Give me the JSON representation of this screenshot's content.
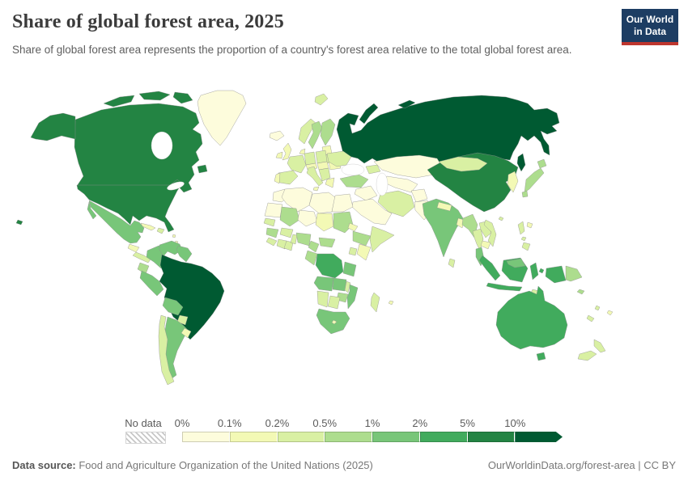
{
  "header": {
    "title": "Share of global forest area, 2025",
    "subtitle": "Share of global forest area represents the proportion of a country's forest area relative to the total global forest area.",
    "logo": {
      "line1": "Our World",
      "line2": "in Data",
      "bg_color": "#1d3d63",
      "accent_color": "#be362e"
    }
  },
  "legend": {
    "no_data_label": "No data",
    "tick_labels": [
      "0%",
      "0.1%",
      "0.2%",
      "0.5%",
      "1%",
      "2%",
      "5%",
      "10%"
    ],
    "palette": [
      "#fdfcdc",
      "#f3f9b5",
      "#d9f0a3",
      "#addd8e",
      "#78c679",
      "#41ab5d",
      "#238443",
      "#005a32"
    ]
  },
  "footer": {
    "source_label": "Data source:",
    "source_text": " Food and Agriculture Organization of the United Nations (2025)",
    "right_text": "OurWorldinData.org/forest-area | CC BY"
  },
  "chart_data": {
    "type": "heatmap",
    "subtype": "choropleth-world-map",
    "title": "Share of global forest area, 2025",
    "unit": "share of global forest area",
    "legend_position": "bottom",
    "bin_edge_labels": [
      "0%",
      "0.1%",
      "0.2%",
      "0.5%",
      "1%",
      "2%",
      "5%",
      "10%"
    ],
    "bin_ranges": [
      "0-0.1%",
      "0.1-0.2%",
      "0.2-0.5%",
      "0.5-1%",
      "1-2%",
      "2-5%",
      "5-10%",
      ">10%"
    ],
    "bin_colors": [
      "#fdfcdc",
      "#f3f9b5",
      "#d9f0a3",
      "#addd8e",
      "#78c679",
      "#41ab5d",
      "#238443",
      "#005a32"
    ],
    "no_data_style": "gray-diagonal-hatch",
    "regions": [
      {
        "id": "russia",
        "name": "Russia",
        "bin": 7
      },
      {
        "id": "brazil",
        "name": "Brazil",
        "bin": 7
      },
      {
        "id": "canada",
        "name": "Canada",
        "bin": 6
      },
      {
        "id": "united-states",
        "name": "United States",
        "bin": 6
      },
      {
        "id": "china",
        "name": "China",
        "bin": 6
      },
      {
        "id": "indonesia",
        "name": "Indonesia",
        "bin": 5
      },
      {
        "id": "australia",
        "name": "Australia",
        "bin": 5
      },
      {
        "id": "dr-congo",
        "name": "Democratic Republic of Congo",
        "bin": 5
      },
      {
        "id": "mexico",
        "name": "Mexico",
        "bin": 4
      },
      {
        "id": "colombia",
        "name": "Colombia",
        "bin": 4
      },
      {
        "id": "venezuela",
        "name": "Venezuela",
        "bin": 4
      },
      {
        "id": "guianas",
        "name": "Guyana and Suriname",
        "bin": 4
      },
      {
        "id": "peru",
        "name": "Peru",
        "bin": 4
      },
      {
        "id": "bolivia",
        "name": "Bolivia",
        "bin": 4
      },
      {
        "id": "argentina",
        "name": "Argentina",
        "bin": 4
      },
      {
        "id": "india",
        "name": "India",
        "bin": 4
      },
      {
        "id": "malaysia",
        "name": "Malaysia",
        "bin": 4
      },
      {
        "id": "angola",
        "name": "Angola",
        "bin": 4
      },
      {
        "id": "zambia",
        "name": "Zambia",
        "bin": 4
      },
      {
        "id": "tanzania",
        "name": "Tanzania",
        "bin": 4
      },
      {
        "id": "mozambique",
        "name": "Mozambique",
        "bin": 4
      },
      {
        "id": "south-africa",
        "name": "South Africa",
        "bin": 4
      },
      {
        "id": "ecuador",
        "name": "Ecuador",
        "bin": 3
      },
      {
        "id": "sweden",
        "name": "Sweden",
        "bin": 3
      },
      {
        "id": "finland",
        "name": "Finland",
        "bin": 3
      },
      {
        "id": "turkey",
        "name": "Turkey",
        "bin": 3
      },
      {
        "id": "japan",
        "name": "Japan",
        "bin": 3
      },
      {
        "id": "myanmar",
        "name": "Myanmar",
        "bin": 3
      },
      {
        "id": "mali",
        "name": "Mali",
        "bin": 3
      },
      {
        "id": "sudan",
        "name": "Sudan",
        "bin": 3
      },
      {
        "id": "ethiopia",
        "name": "Ethiopia",
        "bin": 3
      },
      {
        "id": "nigeria",
        "name": "Nigeria",
        "bin": 3
      },
      {
        "id": "cameroon",
        "name": "Cameroon",
        "bin": 3
      },
      {
        "id": "central-african-republic",
        "name": "Central African Republic",
        "bin": 3
      },
      {
        "id": "congo-gabon",
        "name": "Congo and Gabon",
        "bin": 3
      },
      {
        "id": "guinea",
        "name": "Guinea",
        "bin": 3
      },
      {
        "id": "papua-new-guinea",
        "name": "Papua New Guinea",
        "bin": 3
      },
      {
        "id": "solomon-islands",
        "name": "Solomon Islands",
        "bin": 3
      },
      {
        "id": "zimbabwe",
        "name": "Zimbabwe",
        "bin": 3
      },
      {
        "id": "chile",
        "name": "Chile",
        "bin": 2
      },
      {
        "id": "paraguay",
        "name": "Paraguay",
        "bin": 2
      },
      {
        "id": "norway",
        "name": "Norway",
        "bin": 2
      },
      {
        "id": "france",
        "name": "France",
        "bin": 2
      },
      {
        "id": "spain",
        "name": "Spain",
        "bin": 2
      },
      {
        "id": "germany",
        "name": "Germany",
        "bin": 2
      },
      {
        "id": "poland",
        "name": "Poland",
        "bin": 2
      },
      {
        "id": "italy",
        "name": "Italy",
        "bin": 2
      },
      {
        "id": "balkans",
        "name": "Balkans",
        "bin": 2
      },
      {
        "id": "ukraine",
        "name": "Ukraine",
        "bin": 2
      },
      {
        "id": "belarus",
        "name": "Belarus",
        "bin": 2
      },
      {
        "id": "mongolia",
        "name": "Mongolia",
        "bin": 2
      },
      {
        "id": "thailand",
        "name": "Thailand",
        "bin": 2
      },
      {
        "id": "laos",
        "name": "Laos",
        "bin": 2
      },
      {
        "id": "vietnam",
        "name": "Vietnam",
        "bin": 2
      },
      {
        "id": "philippines",
        "name": "Philippines",
        "bin": 2
      },
      {
        "id": "new-zealand",
        "name": "New Zealand",
        "bin": 2
      },
      {
        "id": "senegal",
        "name": "Senegal",
        "bin": 2
      },
      {
        "id": "burkina-faso",
        "name": "Burkina Faso",
        "bin": 2
      },
      {
        "id": "benin-togo",
        "name": "Benin and Togo",
        "bin": 2
      },
      {
        "id": "ivory-coast",
        "name": "Cote d'Ivoire",
        "bin": 2
      },
      {
        "id": "ghana",
        "name": "Ghana",
        "bin": 2
      },
      {
        "id": "sierra-leone-liberia",
        "name": "Sierra Leone and Liberia",
        "bin": 2
      },
      {
        "id": "somalia",
        "name": "Somalia",
        "bin": 2
      },
      {
        "id": "uganda",
        "name": "Uganda",
        "bin": 2
      },
      {
        "id": "botswana",
        "name": "Botswana",
        "bin": 2
      },
      {
        "id": "namibia",
        "name": "Namibia",
        "bin": 2
      },
      {
        "id": "madagascar",
        "name": "Madagascar",
        "bin": 2
      },
      {
        "id": "malawi",
        "name": "Malawi",
        "bin": 2
      },
      {
        "id": "svalbard",
        "name": "Svalbard",
        "bin": 2
      },
      {
        "id": "new-caledonia",
        "name": "New Caledonia",
        "bin": 2
      },
      {
        "id": "vanuatu",
        "name": "Vanuatu",
        "bin": 2
      },
      {
        "id": "sri-lanka",
        "name": "Sri Lanka",
        "bin": 2
      },
      {
        "id": "timor",
        "name": "Timor",
        "bin": 2
      },
      {
        "id": "central-america-south",
        "name": "Nicaragua, Costa Rica and Panama",
        "bin": 2
      },
      {
        "id": "hispaniola",
        "name": "Hispaniola",
        "bin": 2
      },
      {
        "id": "caucasus",
        "name": "Caucasus",
        "bin": 2
      },
      {
        "id": "iran",
        "name": "Iran",
        "bin": 2
      },
      {
        "id": "hainan",
        "name": "Hainan",
        "bin": 2
      },
      {
        "id": "portugal",
        "name": "Portugal",
        "bin": 1
      },
      {
        "id": "united-kingdom",
        "name": "United Kingdom",
        "bin": 1
      },
      {
        "id": "ireland",
        "name": "Ireland",
        "bin": 1
      },
      {
        "id": "greece",
        "name": "Greece",
        "bin": 1
      },
      {
        "id": "romania",
        "name": "Romania",
        "bin": 1
      },
      {
        "id": "czech-hungary",
        "name": "Czechia, Slovakia and Hungary",
        "bin": 1
      },
      {
        "id": "switzerland-austria",
        "name": "Switzerland and Austria",
        "bin": 1
      },
      {
        "id": "baltics",
        "name": "Baltic states",
        "bin": 1
      },
      {
        "id": "denmark",
        "name": "Denmark",
        "bin": 1
      },
      {
        "id": "sicily",
        "name": "Sicily",
        "bin": 1
      },
      {
        "id": "korea",
        "name": "North and South Korea",
        "bin": 1
      },
      {
        "id": "nepal",
        "name": "Nepal",
        "bin": 1
      },
      {
        "id": "bangladesh",
        "name": "Bangladesh",
        "bin": 1
      },
      {
        "id": "cambodia",
        "name": "Cambodia",
        "bin": 1
      },
      {
        "id": "taiwan",
        "name": "Taiwan",
        "bin": 1
      },
      {
        "id": "kenya",
        "name": "Kenya",
        "bin": 1
      },
      {
        "id": "chad",
        "name": "Chad",
        "bin": 1
      },
      {
        "id": "eritrea",
        "name": "Eritrea",
        "bin": 1
      },
      {
        "id": "lesotho",
        "name": "Lesotho",
        "bin": 1
      },
      {
        "id": "mauritius",
        "name": "Mauritius",
        "bin": 1
      },
      {
        "id": "cuba",
        "name": "Cuba",
        "bin": 1
      },
      {
        "id": "guatemala-honduras",
        "name": "Guatemala and Honduras",
        "bin": 1
      },
      {
        "id": "uruguay",
        "name": "Uruguay",
        "bin": 1
      },
      {
        "id": "lesser-antilles",
        "name": "Lesser Antilles",
        "bin": 1
      },
      {
        "id": "fiji",
        "name": "Fiji",
        "bin": 1
      },
      {
        "id": "greenland",
        "name": "Greenland",
        "bin": 0
      },
      {
        "id": "iceland",
        "name": "Iceland",
        "bin": 0
      },
      {
        "id": "kazakhstan",
        "name": "Kazakhstan",
        "bin": 0
      },
      {
        "id": "central-asia",
        "name": "Turkmenistan and Uzbekistan",
        "bin": 0
      },
      {
        "id": "afghanistan",
        "name": "Afghanistan",
        "bin": 0
      },
      {
        "id": "pakistan",
        "name": "Pakistan",
        "bin": 0
      },
      {
        "id": "iraq-syria",
        "name": "Iraq and Syria",
        "bin": 0
      },
      {
        "id": "saudi-arabia",
        "name": "Arabian Peninsula",
        "bin": 0
      },
      {
        "id": "morocco",
        "name": "Morocco",
        "bin": 0
      },
      {
        "id": "western-sahara-mauritania",
        "name": "Western Sahara and Mauritania",
        "bin": 0
      },
      {
        "id": "algeria",
        "name": "Algeria",
        "bin": 0
      },
      {
        "id": "libya",
        "name": "Libya",
        "bin": 0
      },
      {
        "id": "egypt",
        "name": "Egypt",
        "bin": 0
      },
      {
        "id": "niger",
        "name": "Niger",
        "bin": 0
      }
    ]
  }
}
